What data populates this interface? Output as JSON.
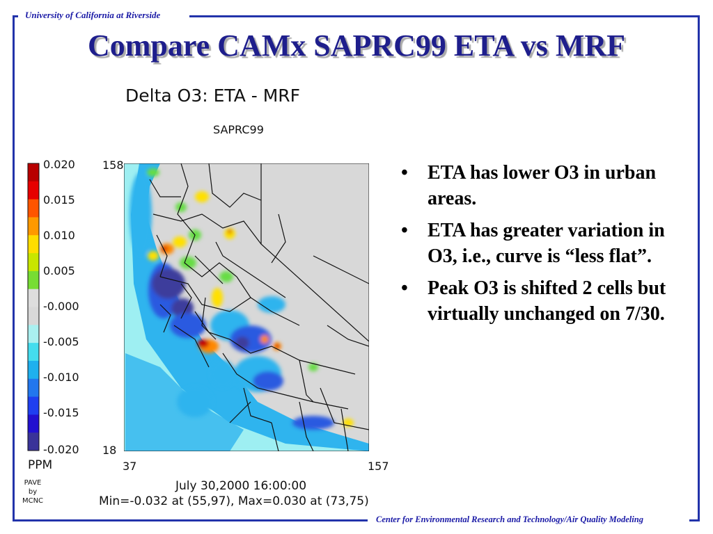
{
  "header": {
    "institution": "University of California at Riverside"
  },
  "footer": {
    "center": "Center for Environmental Research and Technology/Air Quality Modeling"
  },
  "slide": {
    "title": "Compare CAMx SAPRC99 ETA vs MRF",
    "bullets": [
      "ETA has lower O3 in urban areas.",
      "ETA has greater variation in O3, i.e., curve is “less flat”.",
      "Peak O3 is shifted 2 cells but virtually unchanged on 7/30."
    ],
    "bullet_glyph": "•"
  },
  "map": {
    "title": "Delta O3:  ETA - MRF",
    "subtitle": "SAPRC99",
    "units": "PPM",
    "credit": [
      "PAVE",
      "by",
      "MCNC"
    ],
    "date_label": "July 30,2000 16:00:00",
    "minmax_label": "Min=-0.032 at (55,97), Max=0.030 at (73,75)",
    "y_axis": {
      "top": "158",
      "bottom": "18"
    },
    "x_axis": {
      "left": "37",
      "right": "157"
    },
    "colorbar": {
      "labels": [
        "0.020",
        "0.015",
        "0.010",
        "0.005",
        "-0.000",
        "-0.005",
        "-0.010",
        "-0.015",
        "-0.020"
      ],
      "colors": [
        "#b80000",
        "#e60000",
        "#ff5500",
        "#ff9900",
        "#ffdd00",
        "#c8e600",
        "#77dd33",
        "#dddddd",
        "#d8d8d8",
        "#aaf0f0",
        "#44ddee",
        "#1fb0ee",
        "#2277ee",
        "#1f3ff0",
        "#2210d0",
        "#3a3399"
      ]
    },
    "colors": {
      "background": "#d8d8d8",
      "state_lines": "#000000",
      "low_dark": "#3c3c9c",
      "low_mid": "#2a5ae0",
      "low_light": "#2fb4ee",
      "low_pale": "#9eeff2",
      "high_red": "#c80000",
      "high_orange": "#ff8800",
      "high_yellow": "#ffe000",
      "high_green": "#66dd44"
    }
  }
}
